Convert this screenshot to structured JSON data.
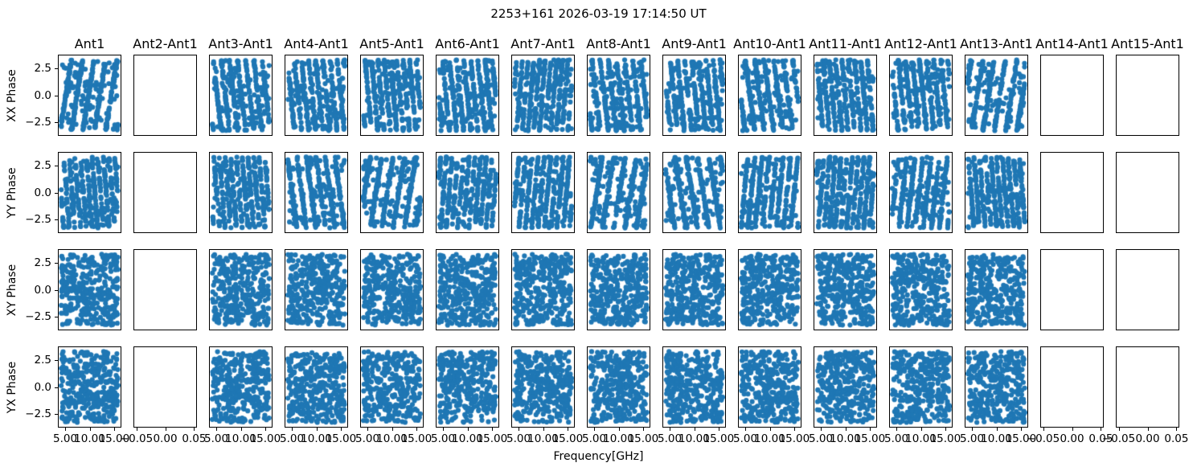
{
  "chart_data": {
    "type": "scatter",
    "title": "2253+161 2026-03-19 17:14:50 UT",
    "xlabel": "Frequency[GHz]",
    "row_labels": [
      "XX Phase",
      "YY Phase",
      "XY Phase",
      "YX Phase"
    ],
    "column_titles": [
      "Ant1",
      "Ant2-Ant1",
      "Ant3-Ant1",
      "Ant4-Ant1",
      "Ant5-Ant1",
      "Ant6-Ant1",
      "Ant7-Ant1",
      "Ant8-Ant1",
      "Ant9-Ant1",
      "Ant10-Ant1",
      "Ant11-Ant1",
      "Ant12-Ant1",
      "Ant13-Ant1",
      "Ant14-Ant1",
      "Ant15-Ant1"
    ],
    "empty_column_indices": [
      1,
      13,
      14
    ],
    "grid": {
      "n_rows": 4,
      "n_cols": 15
    },
    "y_tick_labels": [
      "2.5",
      "0.0",
      "−2.5"
    ],
    "x_tick_labels_data_panels": [
      "5.00",
      "10.00",
      "15.00"
    ],
    "x_tick_labels_empty_panels": [
      "−0.05",
      "0.00",
      "0.05"
    ],
    "x_range_ghz": [
      4.0,
      16.0
    ],
    "y_range_rad": [
      -3.1416,
      3.1416
    ],
    "marker_color": "#1f77b4",
    "row_patterns": [
      "striped-phase-wrap",
      "striped-phase-wrap",
      "uniform-random",
      "uniform-random"
    ],
    "points_per_panel": 420,
    "legend": "none",
    "grid_lines": "off"
  }
}
